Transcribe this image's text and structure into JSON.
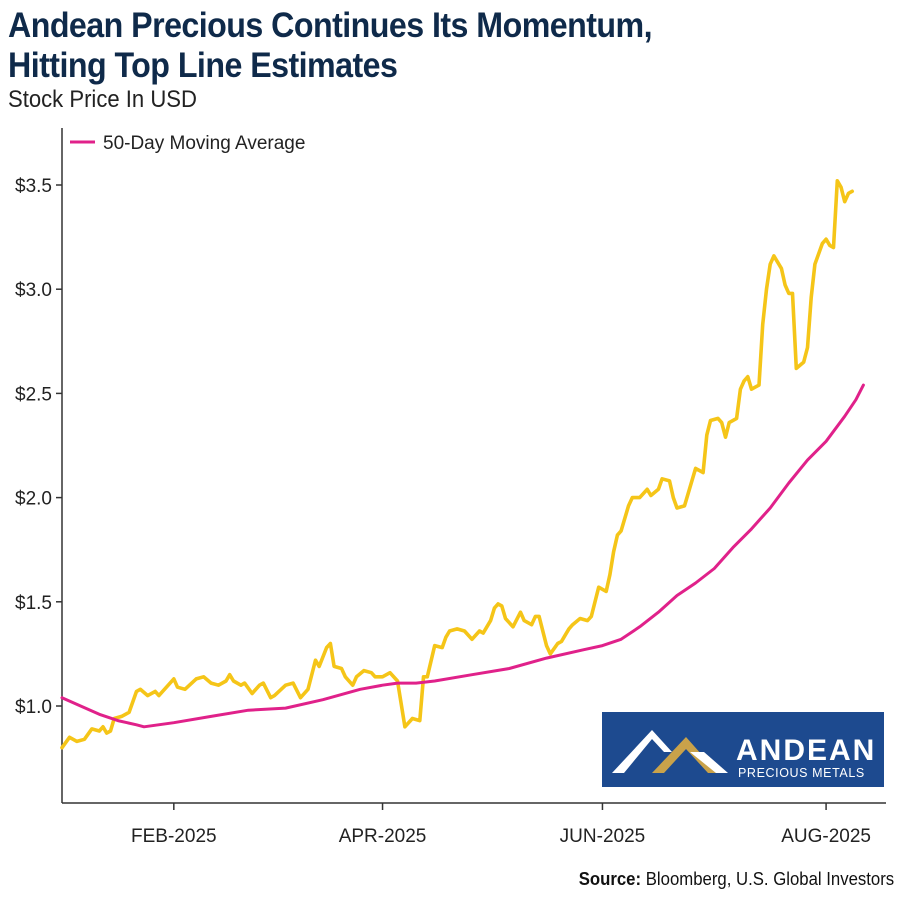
{
  "header": {
    "title_line1": "Andean Precious Continues Its Momentum,",
    "title_line2": "Hitting Top Line Estimates",
    "subtitle": "Stock Price In USD"
  },
  "source": {
    "label": "Source:",
    "text": "Bloomberg, U.S. Global Investors"
  },
  "logo": {
    "name": "ANDEAN",
    "tagline": "PRECIOUS METALS",
    "bg_color": "#1d4a8f",
    "gold_color": "#c9a24a"
  },
  "colors": {
    "price": "#f5c518",
    "moving_average": "#e0218a",
    "axis": "#333333",
    "title": "#0f2a4a"
  },
  "chart_data": {
    "type": "line",
    "title": "Andean Precious Continues Its Momentum, Hitting Top Line Estimates",
    "ylabel": "Stock Price In USD",
    "xlabel": "",
    "ylim": [
      0.5,
      3.75
    ],
    "xlim": [
      0,
      220
    ],
    "y_ticks": [
      {
        "value": 1.0,
        "label": "$1.0"
      },
      {
        "value": 1.5,
        "label": "$1.5"
      },
      {
        "value": 2.0,
        "label": "$2.0"
      },
      {
        "value": 2.5,
        "label": "$2.5"
      },
      {
        "value": 3.0,
        "label": "$3.0"
      },
      {
        "value": 3.5,
        "label": "$3.5"
      }
    ],
    "x_ticks": [
      {
        "day": 30,
        "label": "FEB-2025"
      },
      {
        "day": 86,
        "label": "APR-2025"
      },
      {
        "day": 145,
        "label": "JUN-2025"
      },
      {
        "day": 205,
        "label": "AUG-2025"
      }
    ],
    "legend": [
      {
        "name": "50-Day Moving Average",
        "series": "ma"
      }
    ],
    "legend_position": "top-left",
    "series": [
      {
        "name": "Stock Price",
        "key": "price",
        "points": [
          [
            0,
            0.8
          ],
          [
            2,
            0.85
          ],
          [
            4,
            0.83
          ],
          [
            6,
            0.84
          ],
          [
            8,
            0.89
          ],
          [
            10,
            0.88
          ],
          [
            11,
            0.9
          ],
          [
            12,
            0.87
          ],
          [
            13,
            0.88
          ],
          [
            14,
            0.94
          ],
          [
            16,
            0.95
          ],
          [
            18,
            0.97
          ],
          [
            20,
            1.07
          ],
          [
            21,
            1.08
          ],
          [
            23,
            1.05
          ],
          [
            25,
            1.07
          ],
          [
            26,
            1.05
          ],
          [
            28,
            1.09
          ],
          [
            30,
            1.13
          ],
          [
            31,
            1.09
          ],
          [
            33,
            1.08
          ],
          [
            36,
            1.13
          ],
          [
            38,
            1.14
          ],
          [
            40,
            1.11
          ],
          [
            42,
            1.1
          ],
          [
            44,
            1.12
          ],
          [
            45,
            1.15
          ],
          [
            46,
            1.12
          ],
          [
            48,
            1.1
          ],
          [
            49,
            1.11
          ],
          [
            51,
            1.06
          ],
          [
            53,
            1.1
          ],
          [
            54,
            1.11
          ],
          [
            56,
            1.04
          ],
          [
            57,
            1.05
          ],
          [
            60,
            1.1
          ],
          [
            62,
            1.11
          ],
          [
            64,
            1.04
          ],
          [
            66,
            1.08
          ],
          [
            68,
            1.22
          ],
          [
            69,
            1.19
          ],
          [
            71,
            1.28
          ],
          [
            72,
            1.3
          ],
          [
            73,
            1.19
          ],
          [
            75,
            1.18
          ],
          [
            76,
            1.14
          ],
          [
            78,
            1.1
          ],
          [
            79,
            1.14
          ],
          [
            81,
            1.17
          ],
          [
            83,
            1.16
          ],
          [
            84,
            1.14
          ],
          [
            86,
            1.14
          ],
          [
            88,
            1.16
          ],
          [
            90,
            1.12
          ],
          [
            92,
            0.9
          ],
          [
            94,
            0.94
          ],
          [
            96,
            0.93
          ],
          [
            97,
            1.14
          ],
          [
            98,
            1.14
          ],
          [
            100,
            1.29
          ],
          [
            102,
            1.28
          ],
          [
            103,
            1.33
          ],
          [
            104,
            1.36
          ],
          [
            106,
            1.37
          ],
          [
            108,
            1.36
          ],
          [
            110,
            1.32
          ],
          [
            112,
            1.36
          ],
          [
            113,
            1.35
          ],
          [
            115,
            1.41
          ],
          [
            116,
            1.47
          ],
          [
            117,
            1.49
          ],
          [
            118,
            1.48
          ],
          [
            119,
            1.42
          ],
          [
            121,
            1.38
          ],
          [
            123,
            1.45
          ],
          [
            124,
            1.41
          ],
          [
            126,
            1.39
          ],
          [
            127,
            1.43
          ],
          [
            128,
            1.43
          ],
          [
            130,
            1.29
          ],
          [
            131,
            1.25
          ],
          [
            133,
            1.3
          ],
          [
            134,
            1.31
          ],
          [
            136,
            1.37
          ],
          [
            137,
            1.39
          ],
          [
            139,
            1.42
          ],
          [
            141,
            1.41
          ],
          [
            142,
            1.43
          ],
          [
            143,
            1.5
          ],
          [
            144,
            1.57
          ],
          [
            146,
            1.55
          ],
          [
            147,
            1.63
          ],
          [
            148,
            1.74
          ],
          [
            149,
            1.82
          ],
          [
            150,
            1.84
          ],
          [
            152,
            1.96
          ],
          [
            153,
            2.0
          ],
          [
            155,
            2.0
          ],
          [
            157,
            2.04
          ],
          [
            158,
            2.01
          ],
          [
            160,
            2.04
          ],
          [
            161,
            2.09
          ],
          [
            163,
            2.08
          ],
          [
            164,
            2.0
          ],
          [
            165,
            1.95
          ],
          [
            167,
            1.96
          ],
          [
            168,
            2.02
          ],
          [
            170,
            2.14
          ],
          [
            171,
            2.13
          ],
          [
            172,
            2.12
          ],
          [
            173,
            2.3
          ],
          [
            174,
            2.37
          ],
          [
            176,
            2.38
          ],
          [
            177,
            2.36
          ],
          [
            178,
            2.29
          ],
          [
            179,
            2.36
          ],
          [
            181,
            2.38
          ],
          [
            182,
            2.52
          ],
          [
            183,
            2.56
          ],
          [
            184,
            2.58
          ],
          [
            185,
            2.52
          ],
          [
            187,
            2.54
          ],
          [
            188,
            2.83
          ],
          [
            189,
            3.0
          ],
          [
            190,
            3.12
          ],
          [
            191,
            3.16
          ],
          [
            193,
            3.1
          ],
          [
            194,
            3.02
          ],
          [
            195,
            2.98
          ],
          [
            196,
            2.98
          ],
          [
            197,
            2.62
          ],
          [
            199,
            2.65
          ],
          [
            200,
            2.72
          ],
          [
            201,
            2.96
          ],
          [
            202,
            3.12
          ],
          [
            204,
            3.22
          ],
          [
            205,
            3.24
          ],
          [
            206,
            3.21
          ],
          [
            207,
            3.2
          ],
          [
            208,
            3.52
          ],
          [
            209,
            3.49
          ],
          [
            210,
            3.42
          ],
          [
            211,
            3.46
          ],
          [
            212,
            3.47
          ]
        ]
      },
      {
        "name": "50-Day Moving Average",
        "key": "ma",
        "points": [
          [
            0,
            1.04
          ],
          [
            5,
            1.0
          ],
          [
            10,
            0.96
          ],
          [
            15,
            0.93
          ],
          [
            20,
            0.91
          ],
          [
            22,
            0.9
          ],
          [
            30,
            0.92
          ],
          [
            40,
            0.95
          ],
          [
            50,
            0.98
          ],
          [
            60,
            0.99
          ],
          [
            70,
            1.03
          ],
          [
            80,
            1.08
          ],
          [
            86,
            1.1
          ],
          [
            90,
            1.11
          ],
          [
            95,
            1.11
          ],
          [
            100,
            1.12
          ],
          [
            110,
            1.15
          ],
          [
            120,
            1.18
          ],
          [
            130,
            1.23
          ],
          [
            140,
            1.27
          ],
          [
            145,
            1.29
          ],
          [
            150,
            1.32
          ],
          [
            155,
            1.38
          ],
          [
            160,
            1.45
          ],
          [
            165,
            1.53
          ],
          [
            170,
            1.59
          ],
          [
            175,
            1.66
          ],
          [
            180,
            1.76
          ],
          [
            185,
            1.85
          ],
          [
            190,
            1.95
          ],
          [
            195,
            2.07
          ],
          [
            200,
            2.18
          ],
          [
            205,
            2.27
          ],
          [
            210,
            2.39
          ],
          [
            213,
            2.47
          ],
          [
            215,
            2.54
          ]
        ]
      }
    ]
  }
}
